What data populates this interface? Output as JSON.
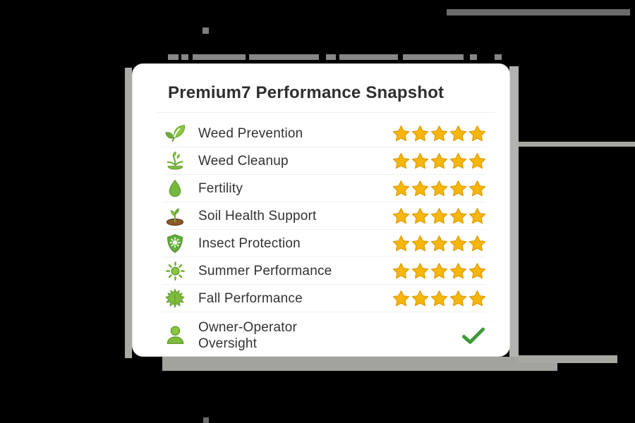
{
  "card": {
    "title": "Premium7 Performance Snapshot",
    "rating_max": 5,
    "rows": [
      {
        "label": "Weed Prevention",
        "icon": "leaves-icon",
        "rating": 5
      },
      {
        "label": "Weed Cleanup",
        "icon": "weed-sprout-icon",
        "rating": 5
      },
      {
        "label": "Fertility",
        "icon": "droplet-icon",
        "rating": 5
      },
      {
        "label": "Soil Health Support",
        "icon": "soil-sprout-icon",
        "rating": 5
      },
      {
        "label": "Insect Protection",
        "icon": "shield-bug-icon",
        "rating": 5
      },
      {
        "label": "Summer Performance",
        "icon": "sun-icon",
        "rating": 5
      },
      {
        "label": "Fall Performance",
        "icon": "maple-leaf-icon",
        "rating": 5
      },
      {
        "label": "Owner-Operator\nOversight",
        "icon": "person-icon",
        "check": true
      }
    ],
    "colors": {
      "star_gold": "#F6B60B",
      "star_edge": "#E09C00",
      "check_green": "#3D9B35",
      "leaf_green": "#7FBB3E",
      "leaf_green_dark": "#5D9A2B",
      "card_background": "#FFFFFF",
      "page_background": "#000000"
    }
  }
}
